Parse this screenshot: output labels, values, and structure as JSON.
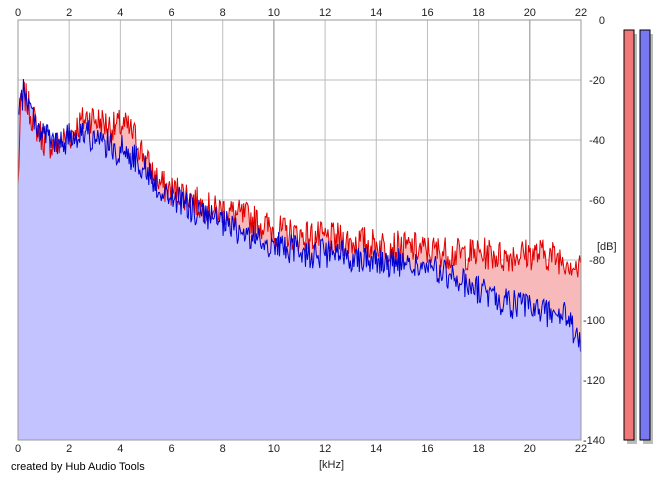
{
  "credit": "created by Hub Audio Tools",
  "colors": {
    "left_line": "#e00000",
    "left_fill": "#f7b9b9",
    "right_line": "#0000d0",
    "right_fill": "#c3c3ff",
    "grid": "#bdbdbd",
    "meter_left": "#f07878",
    "meter_right": "#7878f0",
    "meter_shadow": "#bcbcbc"
  },
  "chart_data": {
    "type": "area",
    "xlabel": "[kHz]",
    "ylabel": "[dB]",
    "xlim": [
      0,
      22
    ],
    "ylim": [
      -140,
      0
    ],
    "x_ticks": [
      "0",
      "2",
      "4",
      "6",
      "8",
      "10",
      "12",
      "14",
      "16",
      "18",
      "20",
      "22"
    ],
    "y_ticks": [
      "0",
      "-20",
      "-40",
      "-60",
      "-80",
      "-100",
      "-120",
      "-140"
    ],
    "grid": true,
    "series": [
      {
        "color": "red",
        "x": [
          0.0,
          0.1,
          0.25,
          0.5,
          0.75,
          1.0,
          1.25,
          1.5,
          1.75,
          2.0,
          2.25,
          2.5,
          2.75,
          3.0,
          3.25,
          3.5,
          3.75,
          4.0,
          4.25,
          4.5,
          4.75,
          5.0,
          5.25,
          5.5,
          5.75,
          6.0,
          6.25,
          6.5,
          6.75,
          7.0,
          7.25,
          7.5,
          7.75,
          8.0,
          8.5,
          9.0,
          9.5,
          10.0,
          10.5,
          11.0,
          11.5,
          12.0,
          12.5,
          13.0,
          13.5,
          14.0,
          14.5,
          15.0,
          15.5,
          16.0,
          16.5,
          17.0,
          17.5,
          18.0,
          18.5,
          19.0,
          19.5,
          20.0,
          20.5,
          21.0,
          21.5,
          22.0
        ],
        "y": [
          -56,
          -30,
          -25,
          -31,
          -36,
          -40,
          -41,
          -42,
          -40,
          -39,
          -36,
          -34,
          -32,
          -33,
          -34,
          -35,
          -36,
          -35,
          -36,
          -38,
          -42,
          -47,
          -51,
          -54,
          -56,
          -57,
          -57,
          -58,
          -59,
          -61,
          -62,
          -63,
          -64,
          -63,
          -65,
          -66,
          -68,
          -70,
          -71,
          -72,
          -72,
          -73,
          -73,
          -74,
          -74,
          -75,
          -75,
          -76,
          -76,
          -77,
          -77,
          -78,
          -78,
          -78,
          -78,
          -79,
          -78,
          -78,
          -78,
          -79,
          -80,
          -84
        ]
      },
      {
        "color": "blue",
        "x": [
          0.0,
          0.1,
          0.25,
          0.5,
          0.75,
          1.0,
          1.25,
          1.5,
          1.75,
          2.0,
          2.25,
          2.5,
          2.75,
          3.0,
          3.25,
          3.5,
          3.75,
          4.0,
          4.25,
          4.5,
          4.75,
          5.0,
          5.25,
          5.5,
          5.75,
          6.0,
          6.25,
          6.5,
          6.75,
          7.0,
          7.25,
          7.5,
          7.75,
          8.0,
          8.5,
          9.0,
          9.5,
          10.0,
          10.5,
          11.0,
          11.5,
          12.0,
          12.5,
          13.0,
          13.5,
          14.0,
          14.5,
          15.0,
          15.5,
          16.0,
          16.5,
          17.0,
          17.5,
          18.0,
          18.5,
          19.0,
          19.5,
          20.0,
          20.5,
          21.0,
          21.5,
          22.0
        ],
        "y": [
          -34,
          -28,
          -23,
          -30,
          -35,
          -38,
          -39,
          -42,
          -41,
          -39,
          -38,
          -37,
          -38,
          -40,
          -42,
          -41,
          -44,
          -43,
          -44,
          -46,
          -47,
          -50,
          -53,
          -56,
          -58,
          -59,
          -60,
          -61,
          -63,
          -64,
          -65,
          -66,
          -67,
          -68,
          -70,
          -72,
          -74,
          -75,
          -76,
          -77,
          -78,
          -78,
          -78,
          -79,
          -79,
          -80,
          -81,
          -81,
          -82,
          -83,
          -84,
          -86,
          -88,
          -90,
          -92,
          -94,
          -95,
          -96,
          -97,
          -98,
          -99,
          -110
        ]
      }
    ]
  }
}
